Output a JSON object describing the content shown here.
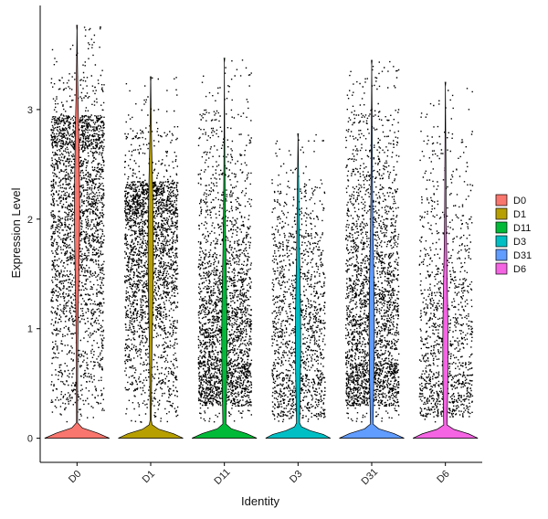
{
  "chart_data": {
    "type": "violin",
    "xlabel": "Identity",
    "ylabel": "Expression Level",
    "ylim": [
      -0.22,
      3.95
    ],
    "yticks": [
      0,
      1,
      2,
      3
    ],
    "grid": false,
    "legend_position": "right",
    "categories": [
      "D0",
      "D1",
      "D11",
      "D3",
      "D31",
      "D6"
    ],
    "colors": {
      "D0": "#F8766D",
      "D1": "#B79F00",
      "D11": "#00BA38",
      "D3": "#00BFC4",
      "D31": "#619CFF",
      "D6": "#F564E3"
    },
    "series": [
      {
        "name": "D0",
        "max": 3.77,
        "zero_fraction": 0.12,
        "point_density": 1.0,
        "main_range": [
          0.3,
          2.95
        ],
        "mode": 2.1
      },
      {
        "name": "D1",
        "max": 3.3,
        "zero_fraction": 0.14,
        "point_density": 0.95,
        "main_range": [
          0.3,
          2.35
        ],
        "mode": 1.7
      },
      {
        "name": "D11",
        "max": 3.47,
        "zero_fraction": 0.18,
        "point_density": 0.95,
        "main_range": [
          0.3,
          2.25
        ],
        "mode": 0.9
      },
      {
        "name": "D3",
        "max": 2.78,
        "zero_fraction": 0.3,
        "point_density": 0.55,
        "main_range": [
          0.2,
          2.3
        ],
        "mode": 0.9
      },
      {
        "name": "D31",
        "max": 3.45,
        "zero_fraction": 0.15,
        "point_density": 1.0,
        "main_range": [
          0.3,
          2.7
        ],
        "mode": 1.0
      },
      {
        "name": "D6",
        "max": 3.25,
        "zero_fraction": 0.3,
        "point_density": 0.45,
        "main_range": [
          0.2,
          2.5
        ],
        "mode": 0.8
      }
    ]
  }
}
